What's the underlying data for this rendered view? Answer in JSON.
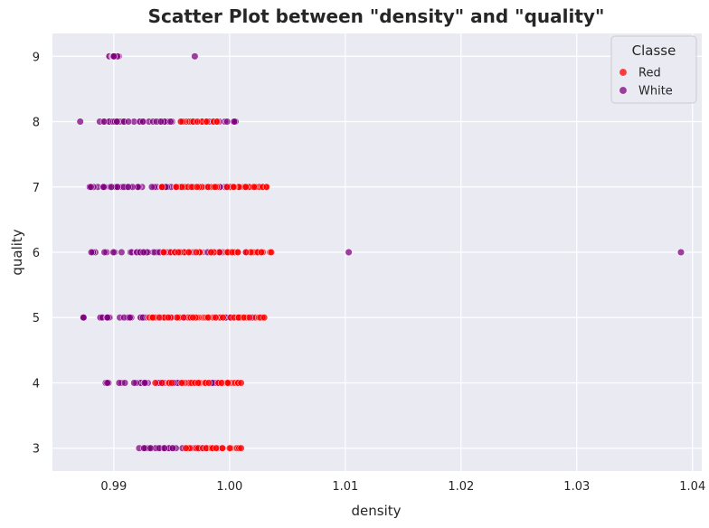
{
  "chart_data": {
    "type": "scatter",
    "title": "Scatter Plot between \"density\" and \"quality\"",
    "xlabel": "density",
    "ylabel": "quality",
    "xlim": [
      0.9847,
      1.0408
    ],
    "ylim": [
      2.65,
      9.35
    ],
    "x_ticks": [
      0.99,
      1.0,
      1.01,
      1.02,
      1.03,
      1.04
    ],
    "x_tick_labels": [
      "0.99",
      "1.00",
      "1.01",
      "1.02",
      "1.03",
      "1.04"
    ],
    "y_ticks": [
      3,
      4,
      5,
      6,
      7,
      8,
      9
    ],
    "y_tick_labels": [
      "3",
      "4",
      "5",
      "6",
      "7",
      "8",
      "9"
    ],
    "grid": true,
    "background": "#EAEAF2",
    "legend": {
      "title": "Classe",
      "position": "top-right"
    },
    "series": [
      {
        "name": "White",
        "color": "#800080",
        "ranges": [
          {
            "y": 3,
            "x_min": 0.9911,
            "x_max": 0.999
          },
          {
            "y": 4,
            "x_min": 0.9892,
            "x_max": 1.0
          },
          {
            "y": 5,
            "x_min": 0.9872,
            "x_max": 1.002
          },
          {
            "y": 6,
            "x_min": 0.9875,
            "x_max": 1.003
          },
          {
            "y": 7,
            "x_min": 0.9871,
            "x_max": 1.001
          },
          {
            "y": 8,
            "x_min": 0.9887,
            "x_max": 1.0006
          },
          {
            "y": 9,
            "x_min": 0.9896,
            "x_max": 0.9905
          }
        ],
        "extra_points": [
          {
            "x": 0.9871,
            "y": 8
          },
          {
            "x": 0.997,
            "y": 9
          },
          {
            "x": 1.0103,
            "y": 6
          },
          {
            "x": 1.039,
            "y": 6
          }
        ]
      },
      {
        "name": "Red",
        "color": "#FF0000",
        "ranges": [
          {
            "y": 3,
            "x_min": 0.996,
            "x_max": 1.001
          },
          {
            "y": 4,
            "x_min": 0.9935,
            "x_max": 1.001
          },
          {
            "y": 5,
            "x_min": 0.993,
            "x_max": 1.0032
          },
          {
            "y": 6,
            "x_min": 0.994,
            "x_max": 1.0037
          },
          {
            "y": 7,
            "x_min": 0.994,
            "x_max": 1.0032
          },
          {
            "y": 8,
            "x_min": 0.995,
            "x_max": 0.999
          }
        ],
        "extra_points": [
          {
            "x": 1.0032,
            "y": 7
          },
          {
            "x": 1.0021,
            "y": 7
          },
          {
            "x": 1.0014,
            "y": 7
          },
          {
            "x": 1.0036,
            "y": 6
          },
          {
            "x": 1.003,
            "y": 5
          },
          {
            "x": 1.001,
            "y": 4
          },
          {
            "x": 1.001,
            "y": 3
          }
        ]
      }
    ]
  }
}
